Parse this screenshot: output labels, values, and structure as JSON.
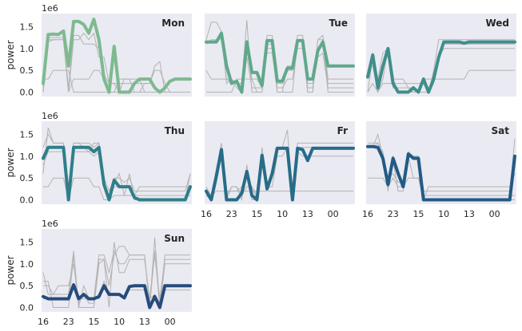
{
  "chart_data": {
    "type": "line",
    "layout": "3x3 small multiples (7 used)",
    "ylabel": "power",
    "y_offset_label": "1e6",
    "ylim": [
      -0.1,
      1.8
    ],
    "yticks": [
      "0.0",
      "0.5",
      "1.0",
      "1.5"
    ],
    "ytick_values": [
      0.0,
      0.5,
      1.0,
      1.5
    ],
    "xtick_labels": [
      "16",
      "23",
      "15",
      "10",
      "13",
      "00"
    ],
    "xtick_positions": [
      0,
      5,
      10,
      15,
      20,
      25
    ],
    "x_count": 30,
    "background_color": "#eaeaf2",
    "background_line_color": "#b3b3b3",
    "panels": [
      {
        "title": "Mon",
        "color": "#7dba8f",
        "highlight": [
          0.2,
          1.32,
          1.33,
          1.32,
          1.4,
          0.6,
          1.62,
          1.62,
          1.55,
          1.35,
          1.67,
          1.2,
          0.3,
          0.0,
          1.05,
          0.0,
          0.0,
          0.0,
          0.2,
          0.3,
          0.3,
          0.3,
          0.1,
          0.0,
          0.1,
          0.25,
          0.3,
          0.3,
          0.3,
          0.3
        ],
        "background": [
          [
            0.0,
            1.2,
            1.2,
            1.2,
            1.2,
            0.0,
            0.3,
            0.3,
            0.3,
            0.3,
            0.5,
            0.5,
            0.3,
            0.0,
            0.0,
            0.3,
            0.3,
            0.3,
            0.3,
            0.3,
            0.0,
            0.0,
            0.0,
            0.0,
            0.0,
            0.0,
            0.0,
            0.0,
            0.0,
            0.0
          ],
          [
            0.0,
            1.15,
            1.2,
            1.2,
            1.2,
            0.0,
            1.2,
            1.2,
            1.35,
            1.2,
            1.35,
            0.8,
            0.8,
            0.2,
            0.2,
            0.0,
            0.3,
            0.3,
            0.0,
            0.0,
            0.2,
            0.2,
            0.6,
            0.7,
            0.0,
            0.0,
            0.0,
            0.0,
            0.0,
            0.0
          ],
          [
            0.3,
            0.3,
            0.5,
            0.5,
            0.5,
            0.5,
            0.0,
            0.0,
            0.0,
            0.0,
            0.0,
            0.0,
            0.0,
            0.0,
            0.0,
            0.0,
            0.0,
            0.0,
            0.0,
            0.0,
            0.0,
            0.0,
            0.0,
            0.0,
            0.0,
            0.0,
            0.0,
            0.0,
            0.0,
            0.0
          ],
          [
            0.1,
            1.25,
            1.25,
            1.25,
            1.25,
            0.1,
            1.3,
            1.3,
            1.1,
            1.1,
            1.1,
            1.0,
            0.4,
            0.2,
            0.2,
            0.2,
            0.2,
            0.2,
            0.2,
            0.2,
            0.2,
            0.2,
            0.5,
            0.5,
            0.2,
            0.0,
            0.0,
            0.0,
            0.0,
            0.0
          ]
        ]
      },
      {
        "title": "Tue",
        "color": "#5fa98b",
        "highlight": [
          1.15,
          1.15,
          1.15,
          1.35,
          0.6,
          0.2,
          0.25,
          0.0,
          1.15,
          0.45,
          0.45,
          0.15,
          1.18,
          1.18,
          0.25,
          0.25,
          0.55,
          0.55,
          1.18,
          1.18,
          0.3,
          0.3,
          0.95,
          1.15,
          0.6,
          0.6,
          0.6,
          0.6,
          0.6,
          0.6
        ],
        "background": [
          [
            0.5,
            0.3,
            0.3,
            0.3,
            0.3,
            0.3,
            0.2,
            0.2,
            1.65,
            0.0,
            0.0,
            0.0,
            1.0,
            1.0,
            0.0,
            0.0,
            0.0,
            0.0,
            1.2,
            1.2,
            0.0,
            0.0,
            1.2,
            1.3,
            0.3,
            0.3,
            0.3,
            0.3,
            0.3,
            0.3
          ],
          [
            1.2,
            1.6,
            1.6,
            1.4,
            0.2,
            0.3,
            0.1,
            0.0,
            1.2,
            0.3,
            0.3,
            0.1,
            1.3,
            1.3,
            0.2,
            0.2,
            0.5,
            0.5,
            1.3,
            1.3,
            0.2,
            0.2,
            1.0,
            1.2,
            0.2,
            0.2,
            0.2,
            0.2,
            0.2,
            0.2
          ],
          [
            1.1,
            1.2,
            1.2,
            1.2,
            0.3,
            0.2,
            0.2,
            0.0,
            0.8,
            0.1,
            0.1,
            0.1,
            0.9,
            0.9,
            0.1,
            0.1,
            0.3,
            0.3,
            1.0,
            1.0,
            0.1,
            0.1,
            0.8,
            0.9,
            0.1,
            0.1,
            0.1,
            0.1,
            0.1,
            0.1
          ],
          [
            0.0,
            0.0,
            0.0,
            0.0,
            0.0,
            0.0,
            0.3,
            0.3,
            0.3,
            0.3,
            0.0,
            0.0,
            1.1,
            1.1,
            0.0,
            0.0,
            0.6,
            0.6,
            1.2,
            1.2,
            0.0,
            0.0,
            1.2,
            1.2,
            0.0,
            0.0,
            0.0,
            0.0,
            0.0,
            0.0
          ]
        ]
      },
      {
        "title": "Wed",
        "color": "#3f8f8a",
        "highlight": [
          0.35,
          0.85,
          0.1,
          0.6,
          1.0,
          0.2,
          0.0,
          0.0,
          0.0,
          0.1,
          0.0,
          0.3,
          0.0,
          0.3,
          0.8,
          1.15,
          1.15,
          1.15,
          1.15,
          1.12,
          1.15,
          1.15,
          1.15,
          1.15,
          1.15,
          1.15,
          1.15,
          1.15,
          1.15,
          1.15
        ],
        "background": [
          [
            0.0,
            0.2,
            0.0,
            0.2,
            0.2,
            0.2,
            0.2,
            0.2,
            0.2,
            0.2,
            0.2,
            0.2,
            0.0,
            0.5,
            1.2,
            1.2,
            1.2,
            1.2,
            1.2,
            1.2,
            1.2,
            1.2,
            1.2,
            1.2,
            1.2,
            1.2,
            1.2,
            1.2,
            1.2,
            1.2
          ],
          [
            0.0,
            0.8,
            0.3,
            0.9,
            1.0,
            0.3,
            0.3,
            0.3,
            0.1,
            0.1,
            0.0,
            0.3,
            0.3,
            0.3,
            0.8,
            1.0,
            1.0,
            1.0,
            1.0,
            1.0,
            1.0,
            1.0,
            1.0,
            1.0,
            1.0,
            1.0,
            1.0,
            1.0,
            1.0,
            1.0
          ],
          [
            0.5,
            0.6,
            0.0,
            0.3,
            1.0,
            0.3,
            0.0,
            0.0,
            0.0,
            0.0,
            0.0,
            0.0,
            0.0,
            0.3,
            0.3,
            0.3,
            0.3,
            0.3,
            0.3,
            0.3,
            0.5,
            0.5,
            0.5,
            0.5,
            0.5,
            0.5,
            0.5,
            0.5,
            0.5,
            0.5
          ],
          [
            0.3,
            0.9,
            0.0,
            0.5,
            1.0,
            0.1,
            0.1,
            0.1,
            0.1,
            0.0,
            0.0,
            0.2,
            0.0,
            0.2,
            0.9,
            1.1,
            1.1,
            1.1,
            1.1,
            1.1,
            1.1,
            1.1,
            1.1,
            1.1,
            1.1,
            1.1,
            1.1,
            1.1,
            1.1,
            1.1
          ]
        ]
      },
      {
        "title": "Thu",
        "color": "#2f7f8a",
        "highlight": [
          0.95,
          1.2,
          1.2,
          1.2,
          1.2,
          0.0,
          1.2,
          1.2,
          1.2,
          1.2,
          1.1,
          1.2,
          0.35,
          0.0,
          0.45,
          0.3,
          0.3,
          0.3,
          0.05,
          0.0,
          0.0,
          0.0,
          0.0,
          0.0,
          0.0,
          0.0,
          0.0,
          0.0,
          0.0,
          0.3
        ],
        "background": [
          [
            0.6,
            1.65,
            1.3,
            1.3,
            1.3,
            0.2,
            1.3,
            1.3,
            1.3,
            1.3,
            1.2,
            1.3,
            0.5,
            0.2,
            0.5,
            0.5,
            0.4,
            0.5,
            0.2,
            0.2,
            0.2,
            0.2,
            0.2,
            0.2,
            0.2,
            0.2,
            0.2,
            0.2,
            0.2,
            0.6
          ],
          [
            1.2,
            1.5,
            1.3,
            1.3,
            1.3,
            0.2,
            1.3,
            1.3,
            1.2,
            1.1,
            1.3,
            1.3,
            0.3,
            0.1,
            0.4,
            0.6,
            0.1,
            0.6,
            0.0,
            0.0,
            0.0,
            0.0,
            0.0,
            0.0,
            0.0,
            0.0,
            0.0,
            0.0,
            0.0,
            0.6
          ],
          [
            0.3,
            0.3,
            0.5,
            0.5,
            0.5,
            0.0,
            0.5,
            0.5,
            0.5,
            0.5,
            0.3,
            0.3,
            0.0,
            0.0,
            0.1,
            0.1,
            0.1,
            0.1,
            0.1,
            0.1,
            0.1,
            0.1,
            0.1,
            0.1,
            0.1,
            0.1,
            0.1,
            0.1,
            0.1,
            0.1
          ],
          [
            0.8,
            1.1,
            1.1,
            1.1,
            1.1,
            0.0,
            1.1,
            1.1,
            1.1,
            1.1,
            1.0,
            1.1,
            0.3,
            0.0,
            0.3,
            0.3,
            0.3,
            0.3,
            0.1,
            0.3,
            0.3,
            0.3,
            0.3,
            0.3,
            0.3,
            0.3,
            0.3,
            0.3,
            0.3,
            0.3
          ]
        ]
      },
      {
        "title": "Fr",
        "color": "#276c88",
        "highlight": [
          0.2,
          0.0,
          0.55,
          1.15,
          0.0,
          0.0,
          0.0,
          0.15,
          0.65,
          0.1,
          0.0,
          1.02,
          0.25,
          0.6,
          1.18,
          1.18,
          1.18,
          0.0,
          1.18,
          1.15,
          0.9,
          1.18,
          1.18,
          1.18,
          1.18,
          1.18,
          1.18,
          1.18,
          1.18,
          1.18
        ],
        "background": [
          [
            0.3,
            0.1,
            0.7,
            1.3,
            0.2,
            0.2,
            0.2,
            0.3,
            0.5,
            0.3,
            0.1,
            1.0,
            0.3,
            0.7,
            1.2,
            1.2,
            1.6,
            0.0,
            1.2,
            1.2,
            1.2,
            1.2,
            1.2,
            1.2,
            1.2,
            1.2,
            1.2,
            1.2,
            1.2,
            1.2
          ],
          [
            0.1,
            0.1,
            0.2,
            0.2,
            0.2,
            0.2,
            0.2,
            0.2,
            0.2,
            0.2,
            0.2,
            0.2,
            0.2,
            0.2,
            0.2,
            0.2,
            0.2,
            0.2,
            0.2,
            0.2,
            0.2,
            0.2,
            0.2,
            0.2,
            0.2,
            0.2,
            0.2,
            0.2,
            0.2,
            0.2
          ],
          [
            0.1,
            0.0,
            0.4,
            1.0,
            0.1,
            0.3,
            0.3,
            0.1,
            0.3,
            0.3,
            0.0,
            1.2,
            0.3,
            0.3,
            1.0,
            1.0,
            1.2,
            0.2,
            1.1,
            1.0,
            1.0,
            1.0,
            1.0,
            1.0,
            1.0,
            1.0,
            1.0,
            1.0,
            1.0,
            1.0
          ],
          [
            0.2,
            0.0,
            0.6,
            1.2,
            0.0,
            0.3,
            0.3,
            0.0,
            0.8,
            0.0,
            0.0,
            0.8,
            0.4,
            0.5,
            1.2,
            1.2,
            1.2,
            0.0,
            1.3,
            1.3,
            1.3,
            1.3,
            1.3,
            1.3,
            1.3,
            1.3,
            1.3,
            1.3,
            1.3,
            1.3
          ]
        ]
      },
      {
        "title": "Sat",
        "color": "#225a86",
        "highlight": [
          1.22,
          1.22,
          1.2,
          0.95,
          0.35,
          0.95,
          0.6,
          0.3,
          1.05,
          0.95,
          0.95,
          0.0,
          0.0,
          0.0,
          0.0,
          0.0,
          0.0,
          0.0,
          0.0,
          0.0,
          0.0,
          0.0,
          0.0,
          0.0,
          0.0,
          0.0,
          0.0,
          0.0,
          0.0,
          1.0
        ],
        "background": [
          [
            1.2,
            1.2,
            1.3,
            1.0,
            0.5,
            0.6,
            0.4,
            0.4,
            1.0,
            0.5,
            0.5,
            0.2,
            0.2,
            0.2,
            0.2,
            0.2,
            0.2,
            0.2,
            0.2,
            0.2,
            0.2,
            0.2,
            0.2,
            0.2,
            0.2,
            0.2,
            0.2,
            0.2,
            0.2,
            1.4
          ],
          [
            1.3,
            1.3,
            1.3,
            1.1,
            0.3,
            0.9,
            0.2,
            0.2,
            1.1,
            1.0,
            1.0,
            0.0,
            0.3,
            0.3,
            0.3,
            0.3,
            0.3,
            0.3,
            0.3,
            0.3,
            0.3,
            0.3,
            0.3,
            0.3,
            0.3,
            0.3,
            0.3,
            0.3,
            0.3,
            0.6
          ],
          [
            0.5,
            0.5,
            0.5,
            0.5,
            0.3,
            0.5,
            0.3,
            0.3,
            0.5,
            0.5,
            0.5,
            0.0,
            0.0,
            0.0,
            0.0,
            0.0,
            0.0,
            0.0,
            0.0,
            0.0,
            0.0,
            0.0,
            0.0,
            0.0,
            0.0,
            0.0,
            0.0,
            0.0,
            0.0,
            0.0
          ],
          [
            1.2,
            1.2,
            1.5,
            1.0,
            0.2,
            1.0,
            0.7,
            0.3,
            1.0,
            1.0,
            1.0,
            0.1,
            0.1,
            0.1,
            0.1,
            0.1,
            0.1,
            0.1,
            0.1,
            0.1,
            0.1,
            0.1,
            0.1,
            0.1,
            0.1,
            0.1,
            0.1,
            0.1,
            0.1,
            0.1
          ]
        ]
      },
      {
        "title": "Sun",
        "color": "#264b7c",
        "highlight": [
          0.25,
          0.2,
          0.2,
          0.2,
          0.2,
          0.2,
          0.52,
          0.2,
          0.3,
          0.2,
          0.2,
          0.25,
          0.5,
          0.3,
          0.3,
          0.3,
          0.22,
          0.48,
          0.5,
          0.5,
          0.5,
          0.0,
          0.25,
          0.0,
          0.5,
          0.5,
          0.5,
          0.5,
          0.5,
          0.5
        ],
        "background": [
          [
            0.8,
            0.3,
            0.3,
            0.3,
            0.3,
            0.3,
            1.3,
            0.0,
            0.5,
            0.2,
            0.2,
            1.2,
            1.2,
            0.8,
            1.3,
            1.0,
            1.0,
            1.2,
            1.2,
            1.2,
            1.2,
            0.0,
            1.6,
            0.0,
            1.2,
            1.2,
            1.2,
            1.2,
            1.2,
            1.2
          ],
          [
            0.6,
            0.6,
            0.0,
            0.0,
            0.0,
            0.0,
            1.2,
            0.0,
            0.0,
            0.0,
            0.0,
            1.0,
            1.1,
            0.0,
            1.5,
            0.8,
            0.8,
            1.1,
            1.1,
            1.1,
            1.1,
            0.2,
            1.2,
            0.2,
            1.1,
            1.1,
            1.1,
            1.1,
            1.1,
            1.1
          ],
          [
            0.2,
            0.2,
            0.2,
            0.2,
            0.2,
            0.2,
            0.5,
            0.2,
            0.2,
            0.2,
            0.2,
            0.2,
            0.6,
            0.3,
            0.3,
            0.3,
            0.2,
            0.4,
            0.4,
            0.4,
            0.4,
            0.2,
            0.3,
            0.1,
            0.4,
            0.4,
            0.4,
            0.4,
            0.4,
            0.4
          ],
          [
            0.5,
            0.5,
            0.3,
            0.5,
            0.5,
            0.5,
            1.0,
            0.1,
            0.3,
            0.1,
            0.1,
            1.1,
            1.1,
            0.5,
            1.2,
            1.4,
            1.4,
            1.2,
            1.2,
            1.2,
            1.2,
            0.0,
            1.3,
            0.0,
            1.0,
            1.0,
            1.0,
            1.0,
            1.0,
            1.0
          ]
        ]
      }
    ]
  }
}
